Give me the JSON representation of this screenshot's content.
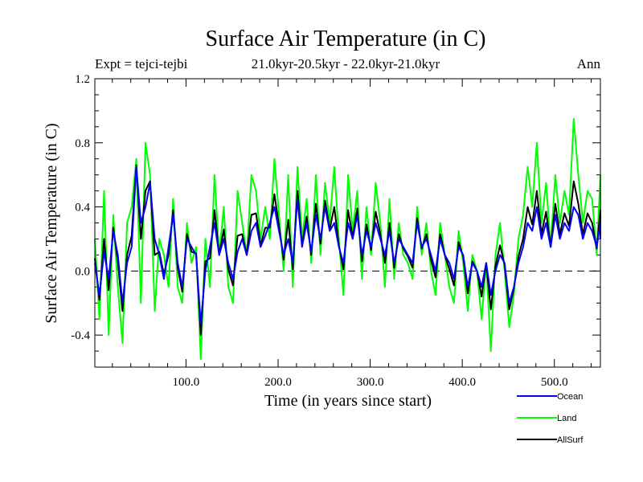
{
  "chart_data": {
    "type": "line",
    "title": "Surface Air Temperature (in C)",
    "subtitle": "21.0kyr-20.5kyr - 22.0kyr-21.0kyr",
    "left_annotation": "Expt = tejci-tejbi",
    "right_annotation": "Ann",
    "xlabel": "Time (in years since start)",
    "ylabel": "Surface Air Temperature (in C)",
    "xlim": [
      1,
      550
    ],
    "ylim": [
      -0.6,
      1.2
    ],
    "x_ticks": [
      100,
      200,
      300,
      400,
      500
    ],
    "x_tick_labels": [
      "100.0",
      "200.0",
      "300.0",
      "400.0",
      "500.0"
    ],
    "y_ticks": [
      -0.4,
      0.0,
      0.4,
      0.8,
      1.2
    ],
    "y_tick_labels": [
      "-0.4",
      "0.0",
      "0.4",
      "0.8",
      "1.2"
    ],
    "reference_line": 0.0,
    "legend_placement": "bottom-right, below plot",
    "series": [
      {
        "name": "Ocean",
        "color": "#0000ff",
        "x_start": 1,
        "x_step": 5,
        "values": [
          0.05,
          -0.15,
          0.12,
          -0.05,
          0.25,
          0.1,
          -0.2,
          0.05,
          0.15,
          0.65,
          0.3,
          0.4,
          0.55,
          0.2,
          0.1,
          -0.05,
          0.15,
          0.35,
          0.05,
          -0.1,
          0.2,
          0.15,
          0.1,
          -0.33,
          0.0,
          0.15,
          0.3,
          0.1,
          0.2,
          0.05,
          -0.05,
          0.12,
          0.2,
          0.1,
          0.25,
          0.3,
          0.15,
          0.22,
          0.3,
          0.4,
          0.25,
          0.1,
          0.2,
          0.05,
          0.45,
          0.15,
          0.3,
          0.12,
          0.35,
          0.2,
          0.4,
          0.25,
          0.3,
          0.15,
          0.05,
          0.3,
          0.2,
          0.35,
          0.1,
          0.25,
          0.15,
          0.3,
          0.2,
          0.1,
          0.25,
          0.05,
          0.2,
          0.15,
          0.1,
          0.05,
          0.3,
          0.15,
          0.2,
          0.1,
          0.0,
          0.2,
          0.1,
          0.05,
          -0.05,
          0.15,
          0.1,
          -0.1,
          0.05,
          0.0,
          -0.1,
          0.05,
          -0.15,
          0.0,
          0.1,
          0.05,
          -0.2,
          -0.1,
          0.05,
          0.15,
          0.3,
          0.25,
          0.4,
          0.2,
          0.3,
          0.15,
          0.35,
          0.2,
          0.3,
          0.25,
          0.4,
          0.35,
          0.2,
          0.3,
          0.25,
          0.15,
          0.3,
          0.2
        ]
      },
      {
        "name": "Land",
        "color": "#00ff00",
        "x_start": 1,
        "x_step": 5,
        "values": [
          0.2,
          -0.3,
          0.5,
          -0.4,
          0.35,
          -0.1,
          -0.45,
          0.3,
          0.4,
          0.7,
          -0.2,
          0.8,
          0.6,
          -0.25,
          0.2,
          0.1,
          -0.1,
          0.45,
          -0.1,
          -0.2,
          0.3,
          0.05,
          0.15,
          -0.55,
          0.2,
          -0.1,
          0.6,
          0.1,
          0.4,
          -0.1,
          -0.2,
          0.5,
          0.3,
          0.1,
          0.6,
          0.5,
          0.2,
          0.4,
          0.2,
          0.7,
          0.35,
          0.0,
          0.6,
          -0.1,
          0.65,
          0.2,
          0.45,
          0.05,
          0.6,
          0.1,
          0.55,
          0.3,
          0.65,
          0.2,
          -0.15,
          0.6,
          0.25,
          0.5,
          -0.05,
          0.4,
          0.1,
          0.55,
          0.3,
          -0.1,
          0.45,
          -0.05,
          0.3,
          0.1,
          0.05,
          -0.05,
          0.4,
          0.1,
          0.3,
          0.0,
          -0.15,
          0.3,
          0.1,
          -0.1,
          -0.2,
          0.25,
          0.05,
          -0.25,
          0.1,
          0.0,
          -0.3,
          0.05,
          -0.5,
          0.1,
          0.3,
          0.0,
          -0.35,
          -0.15,
          0.2,
          0.35,
          0.65,
          0.4,
          0.8,
          0.3,
          0.55,
          0.15,
          0.6,
          0.3,
          0.5,
          0.35,
          0.95,
          0.6,
          0.3,
          0.5,
          0.45,
          0.1,
          0.6,
          0.3
        ]
      },
      {
        "name": "AllSurf",
        "color": "#000000",
        "x_start": 1,
        "x_step": 5,
        "values": [
          0.08,
          -0.18,
          0.2,
          -0.12,
          0.27,
          0.06,
          -0.25,
          0.1,
          0.22,
          0.66,
          0.2,
          0.5,
          0.56,
          0.1,
          0.12,
          -0.02,
          0.1,
          0.38,
          0.02,
          -0.13,
          0.23,
          0.12,
          0.11,
          -0.4,
          0.06,
          0.08,
          0.38,
          0.1,
          0.26,
          0.01,
          -0.09,
          0.22,
          0.23,
          0.1,
          0.35,
          0.36,
          0.16,
          0.27,
          0.27,
          0.48,
          0.28,
          0.07,
          0.32,
          0.01,
          0.5,
          0.16,
          0.34,
          0.1,
          0.42,
          0.17,
          0.44,
          0.26,
          0.4,
          0.16,
          0.01,
          0.38,
          0.21,
          0.39,
          0.06,
          0.29,
          0.13,
          0.37,
          0.23,
          0.05,
          0.3,
          0.02,
          0.23,
          0.14,
          0.09,
          0.02,
          0.33,
          0.14,
          0.23,
          0.07,
          -0.04,
          0.23,
          0.1,
          0.01,
          -0.09,
          0.18,
          0.09,
          -0.14,
          0.06,
          0.0,
          -0.16,
          0.05,
          -0.24,
          0.03,
          0.16,
          0.04,
          -0.24,
          -0.11,
          0.09,
          0.2,
          0.4,
          0.29,
          0.5,
          0.23,
          0.37,
          0.15,
          0.42,
          0.23,
          0.36,
          0.28,
          0.56,
          0.42,
          0.23,
          0.36,
          0.3,
          0.14,
          0.38,
          0.23
        ]
      }
    ]
  }
}
